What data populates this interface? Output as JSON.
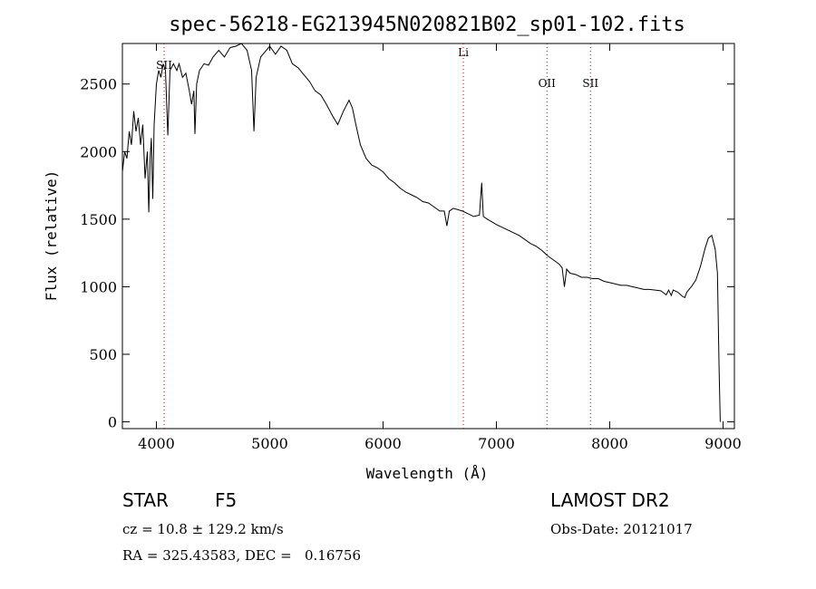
{
  "chart_data": {
    "type": "line",
    "title": "spec-56218-EG213945N020821B02_sp01-102.fits",
    "xlabel": "Wavelength (Å)",
    "ylabel": "Flux (relative)",
    "xlim": [
      3700,
      9100
    ],
    "ylim": [
      -50,
      2800
    ],
    "x_ticks": [
      4000,
      5000,
      6000,
      7000,
      8000,
      9000
    ],
    "y_ticks": [
      0,
      500,
      1000,
      1500,
      2000,
      2500
    ],
    "grid": false,
    "series": [
      {
        "color": "#000000",
        "points": [
          [
            3700,
            1850
          ],
          [
            3720,
            2000
          ],
          [
            3740,
            1950
          ],
          [
            3760,
            2150
          ],
          [
            3780,
            2050
          ],
          [
            3800,
            2300
          ],
          [
            3820,
            2150
          ],
          [
            3840,
            2250
          ],
          [
            3860,
            2050
          ],
          [
            3880,
            2200
          ],
          [
            3900,
            1800
          ],
          [
            3920,
            2000
          ],
          [
            3933,
            1550
          ],
          [
            3945,
            1950
          ],
          [
            3955,
            2100
          ],
          [
            3968,
            1650
          ],
          [
            3980,
            2200
          ],
          [
            4000,
            2500
          ],
          [
            4020,
            2600
          ],
          [
            4040,
            2550
          ],
          [
            4060,
            2650
          ],
          [
            4080,
            2600
          ],
          [
            4101,
            2120
          ],
          [
            4120,
            2600
          ],
          [
            4150,
            2650
          ],
          [
            4180,
            2600
          ],
          [
            4200,
            2650
          ],
          [
            4230,
            2550
          ],
          [
            4260,
            2580
          ],
          [
            4290,
            2450
          ],
          [
            4310,
            2350
          ],
          [
            4330,
            2450
          ],
          [
            4340,
            2130
          ],
          [
            4355,
            2500
          ],
          [
            4380,
            2600
          ],
          [
            4420,
            2650
          ],
          [
            4460,
            2640
          ],
          [
            4500,
            2700
          ],
          [
            4550,
            2750
          ],
          [
            4600,
            2700
          ],
          [
            4650,
            2770
          ],
          [
            4700,
            2780
          ],
          [
            4750,
            2800
          ],
          [
            4800,
            2750
          ],
          [
            4840,
            2600
          ],
          [
            4861,
            2150
          ],
          [
            4880,
            2550
          ],
          [
            4920,
            2700
          ],
          [
            4960,
            2740
          ],
          [
            5000,
            2780
          ],
          [
            5050,
            2720
          ],
          [
            5100,
            2780
          ],
          [
            5150,
            2750
          ],
          [
            5200,
            2650
          ],
          [
            5250,
            2620
          ],
          [
            5300,
            2570
          ],
          [
            5350,
            2520
          ],
          [
            5400,
            2450
          ],
          [
            5450,
            2420
          ],
          [
            5500,
            2350
          ],
          [
            5550,
            2270
          ],
          [
            5600,
            2200
          ],
          [
            5650,
            2300
          ],
          [
            5700,
            2380
          ],
          [
            5730,
            2320
          ],
          [
            5760,
            2200
          ],
          [
            5800,
            2050
          ],
          [
            5850,
            1950
          ],
          [
            5900,
            1900
          ],
          [
            5950,
            1880
          ],
          [
            6000,
            1850
          ],
          [
            6050,
            1800
          ],
          [
            6100,
            1770
          ],
          [
            6150,
            1730
          ],
          [
            6200,
            1700
          ],
          [
            6250,
            1680
          ],
          [
            6300,
            1660
          ],
          [
            6350,
            1630
          ],
          [
            6400,
            1620
          ],
          [
            6450,
            1590
          ],
          [
            6500,
            1560
          ],
          [
            6540,
            1560
          ],
          [
            6563,
            1450
          ],
          [
            6585,
            1560
          ],
          [
            6620,
            1580
          ],
          [
            6660,
            1570
          ],
          [
            6700,
            1560
          ],
          [
            6750,
            1540
          ],
          [
            6800,
            1520
          ],
          [
            6850,
            1530
          ],
          [
            6870,
            1770
          ],
          [
            6885,
            1520
          ],
          [
            6920,
            1500
          ],
          [
            6960,
            1480
          ],
          [
            7000,
            1460
          ],
          [
            7050,
            1440
          ],
          [
            7100,
            1420
          ],
          [
            7150,
            1400
          ],
          [
            7200,
            1380
          ],
          [
            7250,
            1350
          ],
          [
            7300,
            1320
          ],
          [
            7350,
            1300
          ],
          [
            7400,
            1270
          ],
          [
            7450,
            1230
          ],
          [
            7500,
            1200
          ],
          [
            7550,
            1170
          ],
          [
            7580,
            1140
          ],
          [
            7600,
            1000
          ],
          [
            7620,
            1130
          ],
          [
            7650,
            1100
          ],
          [
            7700,
            1090
          ],
          [
            7750,
            1070
          ],
          [
            7800,
            1070
          ],
          [
            7850,
            1060
          ],
          [
            7900,
            1060
          ],
          [
            7950,
            1040
          ],
          [
            8000,
            1030
          ],
          [
            8050,
            1020
          ],
          [
            8100,
            1010
          ],
          [
            8150,
            1010
          ],
          [
            8200,
            1000
          ],
          [
            8250,
            990
          ],
          [
            8300,
            980
          ],
          [
            8350,
            980
          ],
          [
            8400,
            975
          ],
          [
            8450,
            970
          ],
          [
            8498,
            940
          ],
          [
            8520,
            975
          ],
          [
            8542,
            935
          ],
          [
            8560,
            975
          ],
          [
            8600,
            960
          ],
          [
            8640,
            930
          ],
          [
            8662,
            920
          ],
          [
            8680,
            960
          ],
          [
            8720,
            1000
          ],
          [
            8760,
            1050
          ],
          [
            8800,
            1150
          ],
          [
            8840,
            1280
          ],
          [
            8870,
            1360
          ],
          [
            8900,
            1380
          ],
          [
            8930,
            1280
          ],
          [
            8950,
            1100
          ],
          [
            8965,
            400
          ],
          [
            8975,
            0
          ]
        ]
      }
    ],
    "lines": [
      {
        "x": 4068,
        "label": "SII",
        "color": "#cc0000"
      },
      {
        "x": 6708,
        "label": "Li",
        "color": "#cc0000"
      },
      {
        "x": 7446,
        "label": "OII",
        "color": "#cc0000"
      },
      {
        "x": 7830,
        "label": "SII",
        "color": "#cc0000"
      }
    ]
  },
  "info": {
    "class": "STAR",
    "subclass": "F5",
    "survey": "LAMOST DR2",
    "cz": "cz = 10.8 ± 129.2 km/s",
    "obs_date": "Obs-Date: 20121017",
    "coords": "RA = 325.43583, DEC =   0.16756"
  }
}
